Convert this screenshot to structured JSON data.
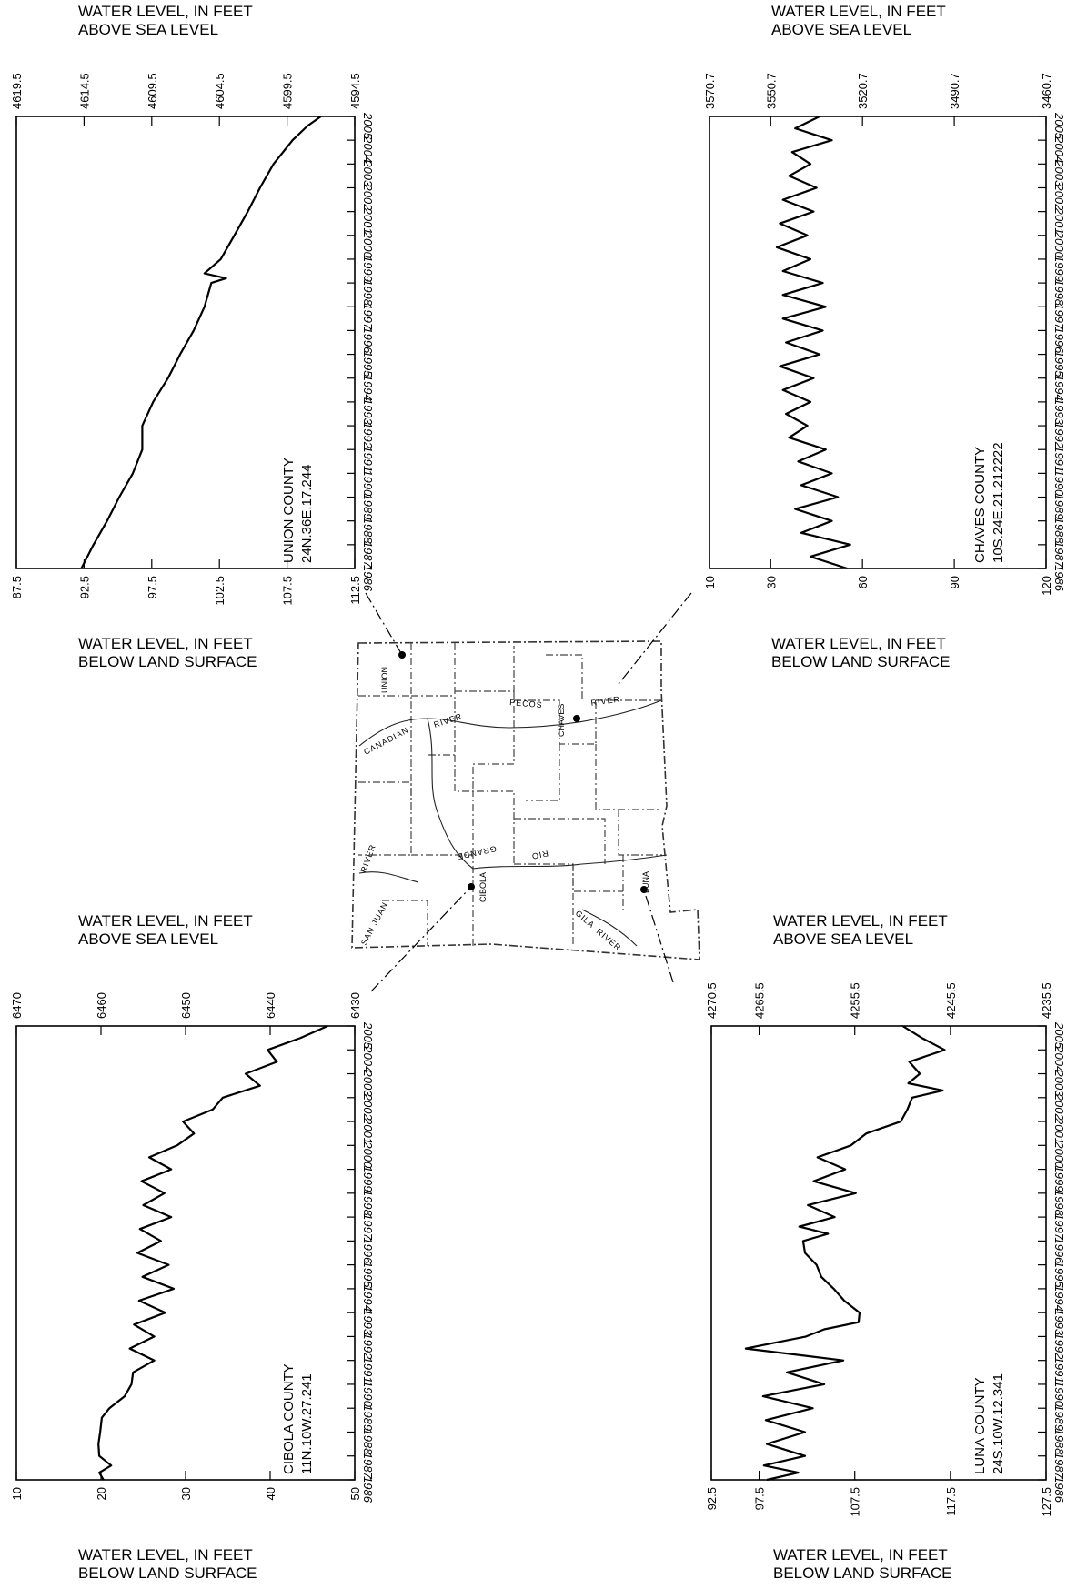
{
  "chart_data": [
    {
      "type": "line",
      "well_county": "UNION COUNTY",
      "well_id": "24N.36E.17.244",
      "top_axis_title": [
        "WATER LEVEL, IN FEET",
        "ABOVE SEA LEVEL"
      ],
      "bottom_axis_title": [
        "WATER LEVEL, IN FEET",
        "BELOW LAND SURFACE"
      ],
      "top_ticks": [
        "4619.5",
        "4614.5",
        "4609.5",
        "4604.5",
        "4599.5",
        "4594.5"
      ],
      "bottom_ticks": [
        "87.5",
        "92.5",
        "97.5",
        "102.5",
        "107.5",
        "112.5"
      ],
      "depth_range": [
        87.5,
        112.5
      ],
      "year_range": [
        1986,
        2005
      ],
      "x": [
        1986,
        1987,
        1988,
        1989,
        1990,
        1991,
        1992,
        1993,
        1994,
        1995,
        1996,
        1997,
        1998,
        1998.2,
        1998.4,
        1999,
        2000,
        2001,
        2002,
        2003,
        2004,
        2004.6,
        2005
      ],
      "y": [
        92.3,
        93.2,
        94.2,
        95.1,
        96.1,
        96.8,
        96.8,
        97.6,
        98.7,
        99.6,
        100.6,
        101.4,
        101.9,
        103.0,
        101.4,
        102.6,
        103.6,
        104.6,
        105.5,
        106.5,
        107.9,
        109.0,
        110.0
      ]
    },
    {
      "type": "line",
      "well_county": "CHAVES COUNTY",
      "well_id": "10S.24E.21.212222",
      "top_axis_title": [
        "WATER LEVEL, IN FEET",
        "ABOVE SEA LEVEL"
      ],
      "bottom_axis_title": [
        "WATER LEVEL, IN FEET",
        "BELOW LAND SURFACE"
      ],
      "top_ticks": [
        "3570.7",
        "3550.7",
        "3520.7",
        "3490.7",
        "3460.7"
      ],
      "bottom_ticks": [
        "10",
        "30",
        "60",
        "90",
        "120"
      ],
      "depth_range": [
        10,
        120
      ],
      "year_range": [
        1986,
        2005
      ],
      "x": [
        1986,
        1986.5,
        1987,
        1987.5,
        1988,
        1988.5,
        1989,
        1989.5,
        1990,
        1990.5,
        1991,
        1991.5,
        1992,
        1992.5,
        1993,
        1993.5,
        1994,
        1994.5,
        1995,
        1995.5,
        1996,
        1996.5,
        1997,
        1997.5,
        1998,
        1998.5,
        1999,
        1999.5,
        2000,
        2000.5,
        2001,
        2001.5,
        2002,
        2002.5,
        2003,
        2003.5,
        2004,
        2004.5,
        2005
      ],
      "y": [
        55,
        43,
        56,
        40,
        50,
        38,
        52,
        40,
        50,
        39,
        48,
        36,
        42,
        35,
        43,
        34,
        44,
        33,
        46,
        35,
        47,
        34,
        48,
        34,
        47,
        34,
        43,
        32,
        42,
        33,
        44,
        34,
        45,
        36,
        43,
        37,
        50,
        38,
        46
      ]
    },
    {
      "type": "line",
      "well_county": "CIBOLA COUNTY",
      "well_id": "11N.10W.27.241",
      "top_axis_title": [
        "WATER LEVEL, IN FEET",
        "ABOVE SEA LEVEL"
      ],
      "bottom_axis_title": [
        "WATER LEVEL, IN FEET",
        "BELOW LAND SURFACE"
      ],
      "top_ticks": [
        "6470",
        "6460",
        "6450",
        "6440",
        "6430"
      ],
      "bottom_ticks": [
        "10",
        "20",
        "30",
        "40",
        "50"
      ],
      "depth_range": [
        10,
        50
      ],
      "year_range": [
        1986,
        2005
      ],
      "x": [
        1986,
        1986.3,
        1986.6,
        1987,
        1987.5,
        1988,
        1988.6,
        1989,
        1989.5,
        1990,
        1990.5,
        1991,
        1991.5,
        1992,
        1992.5,
        1993,
        1993.5,
        1994,
        1994.5,
        1995,
        1995.5,
        1996,
        1996.5,
        1997,
        1997.5,
        1998,
        1998.5,
        1999,
        1999.5,
        2000,
        2000.5,
        2001,
        2001.5,
        2002,
        2002.5,
        2003,
        2003.5,
        2004,
        2004.5,
        2005
      ],
      "y": [
        20.3,
        19.8,
        21.2,
        19.8,
        19.7,
        19.9,
        20.1,
        21.0,
        22.8,
        23.6,
        23.8,
        26.3,
        23.4,
        26.3,
        23.9,
        27.6,
        24.5,
        28.6,
        24.9,
        28.0,
        24.3,
        27.1,
        24.6,
        28.3,
        25.0,
        27.5,
        24.8,
        28.3,
        25.7,
        29.0,
        31.0,
        29.7,
        33.2,
        34.4,
        38.8,
        37.1,
        40.8,
        39.7,
        43.6,
        46.8
      ]
    },
    {
      "type": "line",
      "well_county": "LUNA COUNTY",
      "well_id": "24S.10W.12.341",
      "top_axis_title": [
        "WATER LEVEL, IN FEET",
        "ABOVE SEA LEVEL"
      ],
      "bottom_axis_title": [
        "WATER LEVEL, IN FEET",
        "BELOW LAND SURFACE"
      ],
      "top_ticks": [
        "4270.5",
        "4265.5",
        "4255.5",
        "4245.5",
        "4235.5"
      ],
      "bottom_ticks": [
        "92.5",
        "97.5",
        "107.5",
        "117.5",
        "127.5"
      ],
      "depth_range": [
        92.5,
        127.5
      ],
      "year_range": [
        1986,
        2005
      ],
      "x": [
        1986,
        1986.3,
        1986.6,
        1987,
        1987.5,
        1988,
        1988.5,
        1989,
        1989.5,
        1990,
        1990.5,
        1991,
        1991.5,
        1992,
        1992.3,
        1992.6,
        1993,
        1993.5,
        1994,
        1994.5,
        1995,
        1995.5,
        1996,
        1996.3,
        1996.6,
        1997,
        1997.5,
        1998,
        1998.5,
        1999,
        1999.5,
        2000,
        2000.5,
        2001,
        2001.5,
        2002,
        2002.3,
        2002.6,
        2003,
        2003.5,
        2004,
        2004.5,
        2005
      ],
      "y": [
        98.3,
        101.6,
        98.0,
        102.3,
        98.3,
        102.3,
        98.2,
        103.1,
        97.9,
        104.3,
        100.4,
        106.3,
        96.1,
        102.4,
        104.3,
        107.9,
        108.0,
        106.4,
        105.3,
        104.0,
        103.5,
        102.3,
        102.1,
        104.7,
        101.7,
        105.4,
        102.6,
        107.6,
        103.2,
        106.5,
        103.6,
        107.1,
        108.7,
        112.3,
        113.0,
        113.5,
        116.7,
        113.1,
        114.3,
        113.2,
        116.9,
        114.5,
        112.5
      ]
    }
  ],
  "map": {
    "counties": [
      "UNION",
      "CHAVES",
      "CIBOLA",
      "LUNA"
    ],
    "rivers": [
      "CANADIAN",
      "RIVER",
      "PECOS",
      "RIVER",
      "GRANDE",
      "RIO",
      "SAN JUAN",
      "RIVER",
      "GILA",
      "RIVER"
    ]
  }
}
